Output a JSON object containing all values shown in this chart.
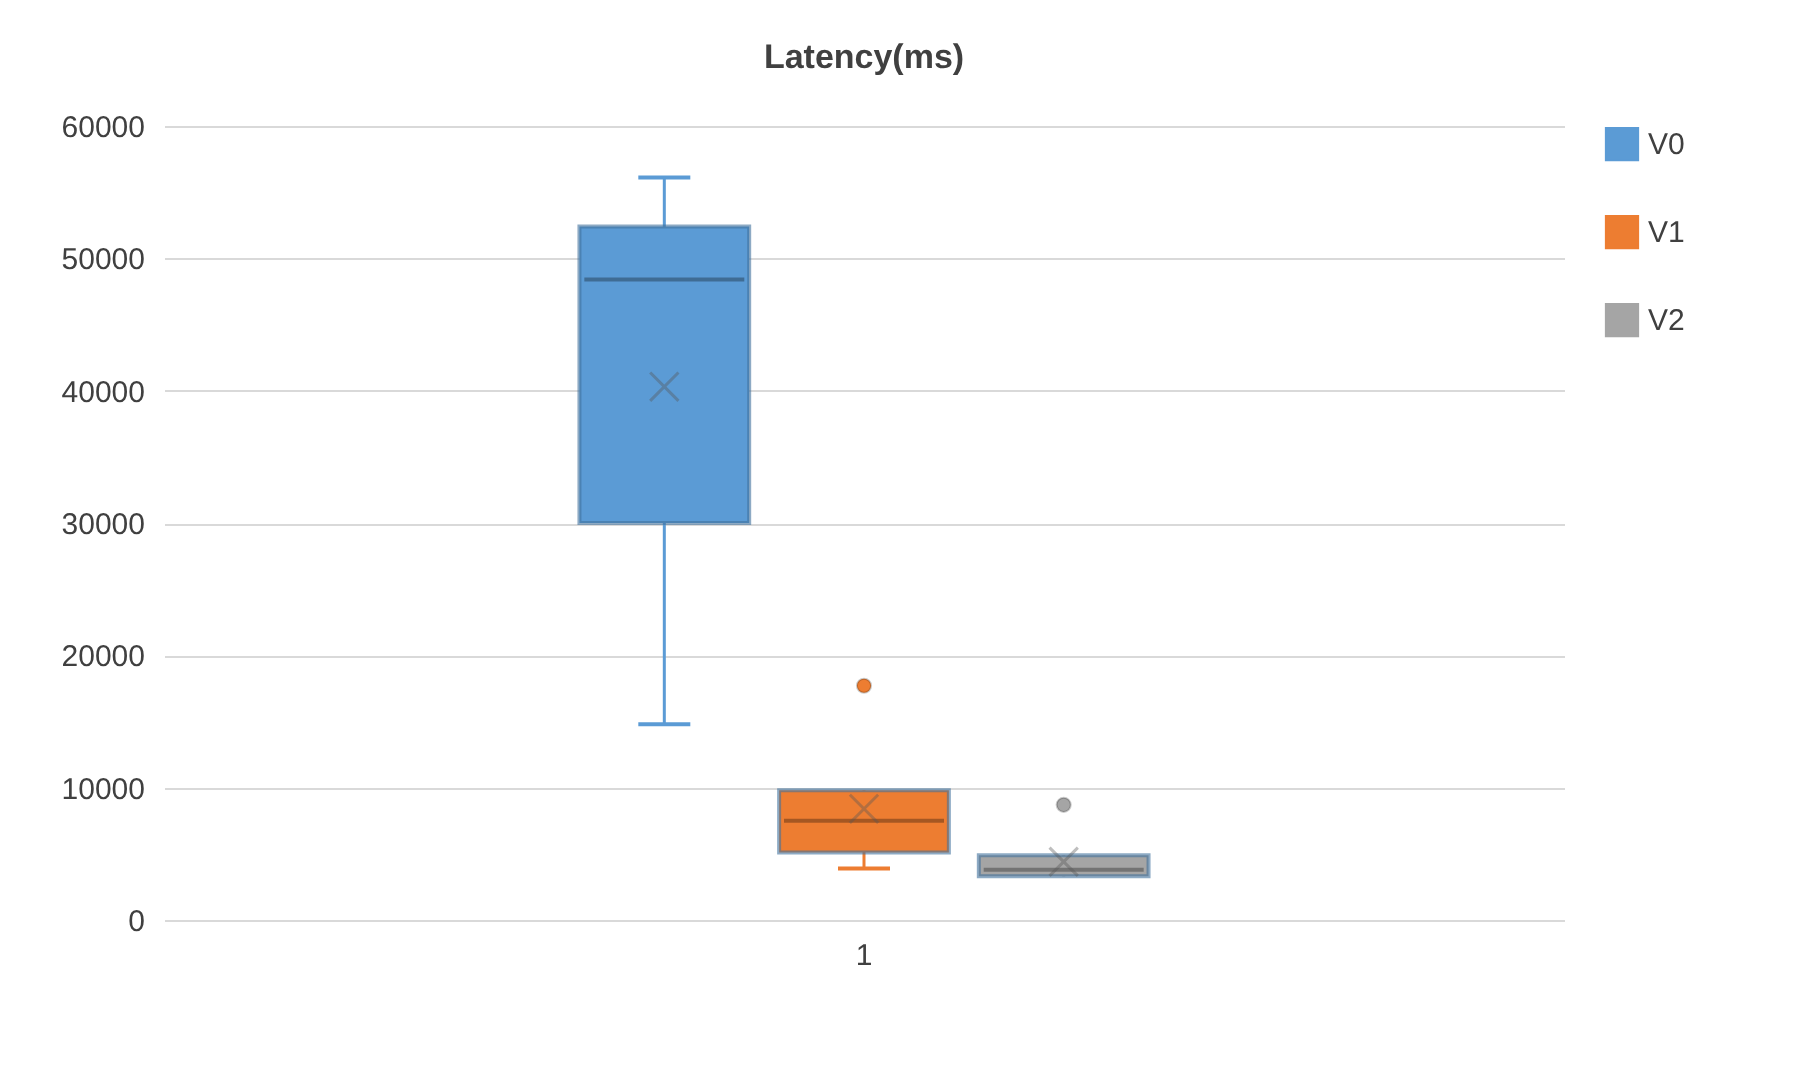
{
  "chart_data": {
    "type": "box",
    "title": "Latency(ms)",
    "categories": [
      "1"
    ],
    "series": [
      {
        "name": "V0",
        "color": "#5b9bd5",
        "boxes": [
          {
            "low": 14800,
            "q1": 30000,
            "median": 48400,
            "q3": 52400,
            "high": 56100,
            "mean": 40300
          }
        ]
      },
      {
        "name": "V1",
        "color": "#ed7d31",
        "boxes": [
          {
            "low": 3900,
            "q1": 5100,
            "median": 7500,
            "q3": 9800,
            "high": 9800,
            "mean": 8400,
            "outliers": [
              17700
            ]
          }
        ]
      },
      {
        "name": "V2",
        "color": "#a5a5a5",
        "boxes": [
          {
            "low": 3300,
            "q1": 3300,
            "median": 3800,
            "q3": 4900,
            "high": 4900,
            "mean": 4400,
            "outliers": [
              8700
            ]
          }
        ]
      }
    ],
    "ylim": [
      0,
      60000
    ],
    "yticks": [
      0,
      10000,
      20000,
      30000,
      40000,
      50000,
      60000
    ],
    "grid": "y",
    "legend": "right"
  }
}
